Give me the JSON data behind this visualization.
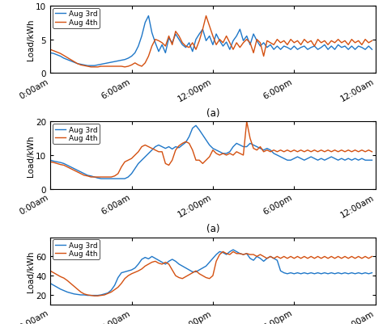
{
  "title": "(a)",
  "xlabel_ticks": [
    "0:00am",
    "6:00am",
    "12:00pm",
    "6:00pm",
    "12:00am"
  ],
  "ylabel": "Load/kWh",
  "legend": [
    "Aug 3rd",
    "Aug 4th"
  ],
  "line_colors": [
    "#1f77c8",
    "#d45010"
  ],
  "subplot1": {
    "ylim": [
      0,
      10
    ],
    "yticks": [
      0,
      5,
      10
    ],
    "blue": [
      3.0,
      2.9,
      2.7,
      2.5,
      2.2,
      2.0,
      1.8,
      1.6,
      1.4,
      1.3,
      1.2,
      1.1,
      1.1,
      1.1,
      1.2,
      1.3,
      1.4,
      1.5,
      1.6,
      1.7,
      1.8,
      1.9,
      2.0,
      2.2,
      2.5,
      3.0,
      4.0,
      5.5,
      7.5,
      8.5,
      6.0,
      4.5,
      3.2,
      4.2,
      3.0,
      5.2,
      4.5,
      5.8,
      5.0,
      4.2,
      3.8,
      4.5,
      3.2,
      5.0,
      5.8,
      6.5,
      4.8,
      5.5,
      4.2,
      5.8,
      4.8,
      4.0,
      4.6,
      3.5,
      4.8,
      5.5,
      6.5,
      4.8,
      5.5,
      4.2,
      5.8,
      4.8,
      4.0,
      4.5,
      3.8,
      4.2,
      3.5,
      4.0,
      3.5,
      4.0,
      3.8,
      3.5,
      4.0,
      3.5,
      3.8,
      4.0,
      3.5,
      3.8,
      4.0,
      3.5,
      3.8,
      4.2,
      3.5,
      4.0,
      3.5,
      4.2,
      3.8,
      4.0,
      3.5,
      4.0,
      3.5,
      4.0,
      3.8,
      3.5,
      4.0,
      3.5
    ],
    "orange": [
      3.5,
      3.3,
      3.1,
      2.9,
      2.6,
      2.3,
      2.0,
      1.7,
      1.4,
      1.2,
      1.1,
      1.0,
      0.9,
      0.9,
      0.9,
      1.0,
      1.0,
      1.0,
      1.0,
      1.0,
      1.0,
      1.0,
      0.9,
      1.0,
      1.2,
      1.5,
      1.2,
      1.0,
      1.5,
      2.5,
      4.0,
      5.0,
      4.8,
      4.5,
      4.0,
      5.5,
      4.2,
      6.2,
      5.5,
      4.5,
      4.0,
      3.8,
      4.5,
      3.5,
      4.8,
      6.5,
      8.5,
      7.0,
      5.5,
      4.2,
      5.0,
      4.5,
      5.5,
      4.5,
      3.5,
      4.5,
      3.8,
      4.5,
      5.0,
      4.5,
      3.0,
      5.0,
      4.5,
      2.5,
      4.8,
      4.5,
      4.2,
      5.0,
      4.5,
      4.8,
      4.2,
      5.0,
      4.5,
      4.8,
      4.2,
      5.0,
      4.5,
      4.8,
      4.0,
      5.0,
      4.5,
      4.8,
      4.2,
      4.8,
      4.5,
      5.0,
      4.5,
      4.8,
      4.2,
      5.0,
      4.5,
      4.8,
      4.2,
      5.0,
      4.5,
      4.8
    ]
  },
  "subplot2": {
    "ylim": [
      0,
      20
    ],
    "yticks": [
      0,
      10,
      20
    ],
    "blue": [
      8.5,
      8.2,
      8.0,
      7.8,
      7.5,
      7.0,
      6.5,
      6.0,
      5.5,
      5.0,
      4.5,
      4.0,
      3.8,
      3.5,
      3.2,
      3.0,
      3.0,
      3.0,
      3.0,
      3.0,
      3.0,
      3.0,
      3.0,
      3.5,
      4.5,
      6.0,
      7.5,
      8.5,
      9.5,
      10.5,
      11.5,
      12.5,
      13.0,
      12.5,
      12.0,
      12.5,
      11.8,
      12.5,
      12.2,
      13.0,
      13.8,
      15.5,
      18.0,
      18.8,
      17.5,
      16.0,
      14.5,
      13.0,
      12.0,
      11.5,
      11.0,
      10.5,
      10.5,
      11.0,
      12.5,
      13.5,
      13.0,
      12.5,
      12.5,
      13.5,
      13.0,
      12.5,
      12.0,
      11.5,
      12.0,
      11.5,
      10.5,
      10.0,
      9.5,
      9.0,
      8.5,
      8.5,
      9.0,
      9.5,
      9.0,
      8.5,
      9.0,
      9.5,
      9.0,
      8.5,
      9.0,
      8.5,
      9.0,
      9.5,
      9.0,
      8.5,
      9.0,
      8.5,
      9.0,
      8.5,
      9.0,
      8.5,
      9.0,
      8.5,
      8.5,
      8.5
    ],
    "orange": [
      8.0,
      7.8,
      7.5,
      7.2,
      7.0,
      6.5,
      6.0,
      5.5,
      5.0,
      4.5,
      4.0,
      3.8,
      3.5,
      3.5,
      3.5,
      3.5,
      3.5,
      3.5,
      3.5,
      3.8,
      4.5,
      6.5,
      8.0,
      8.5,
      9.0,
      10.0,
      11.0,
      12.5,
      13.0,
      12.5,
      12.0,
      11.5,
      11.0,
      11.0,
      7.5,
      7.0,
      8.5,
      11.5,
      12.8,
      13.5,
      14.0,
      13.5,
      11.5,
      8.5,
      8.5,
      7.5,
      8.5,
      9.5,
      11.5,
      10.5,
      10.0,
      10.5,
      10.0,
      10.5,
      10.0,
      11.0,
      10.5,
      10.0,
      20.0,
      15.0,
      12.0,
      11.5,
      12.5,
      11.0,
      11.5,
      11.0,
      11.5,
      11.0,
      11.5,
      11.0,
      11.5,
      11.0,
      11.5,
      11.0,
      11.5,
      11.0,
      11.5,
      11.0,
      11.5,
      11.0,
      11.5,
      11.0,
      11.5,
      11.0,
      11.5,
      11.0,
      11.5,
      11.0,
      11.5,
      11.0,
      11.5,
      11.0,
      11.5,
      11.0,
      11.5,
      11.0
    ]
  },
  "subplot3": {
    "ylim": [
      10,
      80
    ],
    "yticks": [
      20,
      40,
      60
    ],
    "blue": [
      32.0,
      30.0,
      28.0,
      26.0,
      24.5,
      23.0,
      22.0,
      21.0,
      20.5,
      20.0,
      20.0,
      19.5,
      19.5,
      19.5,
      19.5,
      20.0,
      21.0,
      22.0,
      25.0,
      30.0,
      38.0,
      43.0,
      44.0,
      45.0,
      46.0,
      48.0,
      52.0,
      57.0,
      59.0,
      57.5,
      60.0,
      58.0,
      56.0,
      54.0,
      52.0,
      55.0,
      57.0,
      55.0,
      52.0,
      50.0,
      48.0,
      46.0,
      44.0,
      44.0,
      46.0,
      48.0,
      50.0,
      54.0,
      58.0,
      62.0,
      65.0,
      64.0,
      62.0,
      65.0,
      67.0,
      65.0,
      63.0,
      62.0,
      63.0,
      58.0,
      56.0,
      60.0,
      58.0,
      55.0,
      58.0,
      60.0,
      58.0,
      56.0,
      45.0,
      43.0,
      42.0,
      43.0,
      42.0,
      43.0,
      42.0,
      43.0,
      42.0,
      43.0,
      42.0,
      43.0,
      42.0,
      43.0,
      42.0,
      43.0,
      42.0,
      43.0,
      42.0,
      43.0,
      42.0,
      43.0,
      42.0,
      43.0,
      42.0,
      43.0,
      42.0,
      43.0
    ],
    "orange": [
      45.0,
      43.0,
      41.0,
      39.0,
      37.5,
      35.0,
      32.0,
      29.0,
      26.0,
      23.0,
      21.0,
      20.0,
      19.5,
      19.0,
      19.0,
      19.5,
      20.0,
      21.5,
      23.0,
      25.5,
      28.0,
      32.0,
      37.0,
      40.0,
      42.0,
      43.5,
      45.0,
      47.0,
      50.0,
      52.0,
      54.0,
      55.0,
      53.0,
      52.0,
      54.0,
      52.0,
      46.0,
      40.0,
      38.0,
      37.0,
      39.0,
      41.0,
      43.0,
      45.0,
      42.0,
      40.0,
      38.0,
      37.0,
      40.0,
      55.0,
      62.0,
      65.0,
      63.0,
      62.0,
      65.0,
      63.0,
      63.0,
      62.0,
      63.0,
      62.0,
      62.0,
      60.0,
      62.0,
      60.0,
      58.0,
      60.0,
      58.0,
      60.0,
      58.0,
      60.0,
      58.0,
      60.0,
      58.0,
      60.0,
      58.0,
      60.0,
      58.0,
      60.0,
      58.0,
      60.0,
      58.0,
      60.0,
      58.0,
      60.0,
      58.0,
      60.0,
      58.0,
      60.0,
      58.0,
      60.0,
      58.0,
      60.0,
      58.0,
      60.0,
      58.0,
      60.0
    ]
  }
}
